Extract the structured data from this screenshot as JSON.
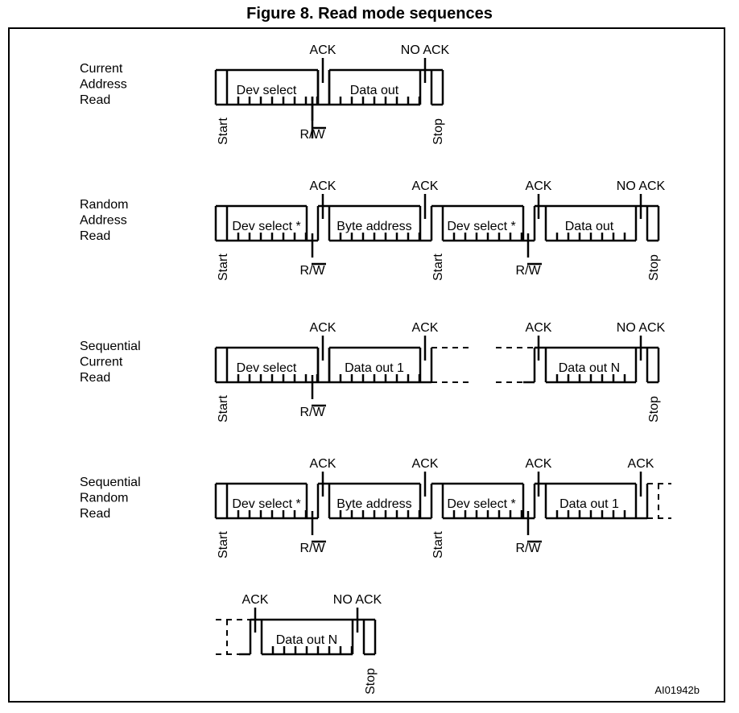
{
  "figure": {
    "title": "Figure 8. Read mode sequences",
    "reference": "AI01942b"
  },
  "colors": {
    "ink": "#000000",
    "background": "#ffffff"
  },
  "sequences": [
    {
      "id": "current-address-read",
      "label": [
        "Current",
        "Address",
        "Read"
      ],
      "fields": [
        {
          "kind": "start-box",
          "label": "Dev select",
          "start": "Start",
          "rw": "R/W"
        },
        {
          "kind": "ack-box",
          "label": "Data out",
          "ack": "ACK"
        },
        {
          "kind": "stop-box",
          "ack": "NO ACK",
          "stop": "Stop"
        }
      ]
    },
    {
      "id": "random-address-read",
      "label": [
        "Random",
        "Address",
        "Read"
      ],
      "fields": [
        {
          "kind": "start-box",
          "label": "Dev select *",
          "start": "Start",
          "rw": "R/W"
        },
        {
          "kind": "ack-box",
          "label": "Byte address",
          "ack": "ACK"
        },
        {
          "kind": "restart-box",
          "label": "Dev select *",
          "ack": "ACK",
          "start": "Start",
          "rw": "R/W"
        },
        {
          "kind": "ack-box",
          "label": "Data out",
          "ack": "ACK"
        },
        {
          "kind": "stop-box",
          "ack": "NO ACK",
          "stop": "Stop"
        }
      ]
    },
    {
      "id": "sequential-current-read",
      "label": [
        "Sequential",
        "Current",
        "Read"
      ],
      "fields": [
        {
          "kind": "start-box",
          "label": "Dev select",
          "start": "Start",
          "rw": "R/W"
        },
        {
          "kind": "ack-box",
          "label": "Data out 1",
          "ack": "ACK"
        },
        {
          "kind": "ack-box",
          "label": "Data out N",
          "ack": "ACK"
        },
        {
          "kind": "stop-box",
          "ack": "NO ACK",
          "stop": "Stop"
        }
      ]
    },
    {
      "id": "sequential-random-read",
      "label": [
        "Sequential",
        "Random",
        "Read"
      ],
      "fields": [
        {
          "kind": "start-box",
          "label": "Dev select *",
          "start": "Start",
          "rw": "R/W"
        },
        {
          "kind": "ack-box",
          "label": "Byte address",
          "ack": "ACK"
        },
        {
          "kind": "restart-box",
          "label": "Dev select *",
          "ack": "ACK",
          "start": "Start",
          "rw": "R/W"
        },
        {
          "kind": "ack-box",
          "label": "Data out 1",
          "ack": "ACK"
        },
        {
          "kind": "ack-box",
          "label": "Data out N",
          "ack": "ACK"
        },
        {
          "kind": "stop-box",
          "ack": "NO ACK",
          "stop": "Stop"
        }
      ]
    }
  ]
}
